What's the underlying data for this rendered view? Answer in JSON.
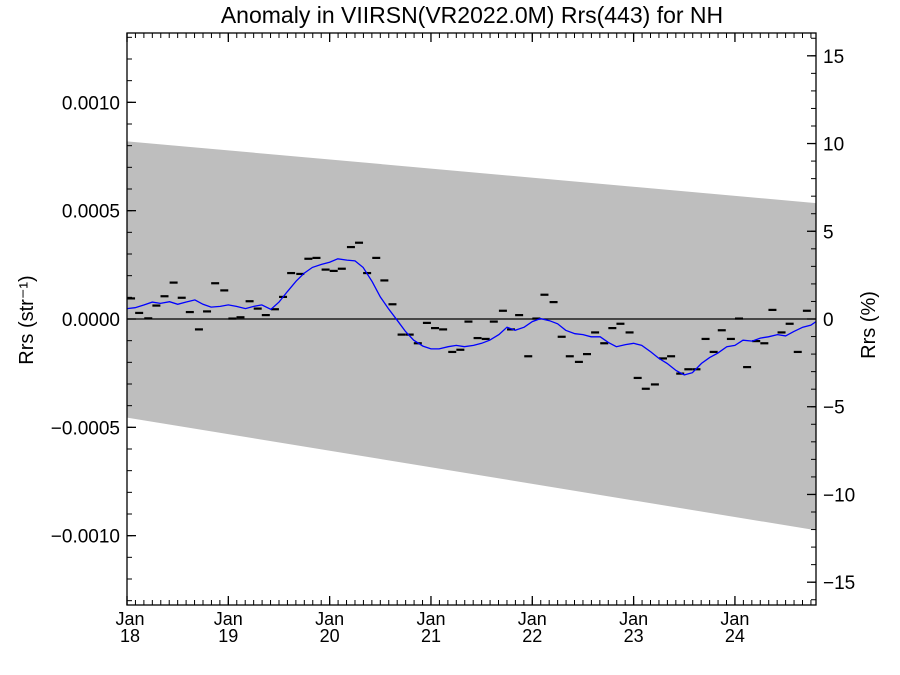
{
  "chart_data": {
    "type": "scatter",
    "title": "Anomaly in VIIRSN(VR2022.0M) Rrs(443) for NH",
    "ylabel": "Rrs (str⁻¹)",
    "y2label": "Rrs (%)",
    "xlim": [
      2018.0,
      2024.8
    ],
    "ylim": [
      -0.00132,
      0.00132
    ],
    "y2lim": [
      -16.3,
      16.3
    ],
    "grid": false,
    "x_ticks": [
      {
        "x": 2018.0,
        "month": "Jan",
        "year": "18"
      },
      {
        "x": 2019.0,
        "month": "Jan",
        "year": "19"
      },
      {
        "x": 2020.0,
        "month": "Jan",
        "year": "20"
      },
      {
        "x": 2021.0,
        "month": "Jan",
        "year": "21"
      },
      {
        "x": 2022.0,
        "month": "Jan",
        "year": "22"
      },
      {
        "x": 2023.0,
        "month": "Jan",
        "year": "23"
      },
      {
        "x": 2024.0,
        "month": "Jan",
        "year": "24"
      }
    ],
    "y_ticks": [
      {
        "v": 0.001,
        "label": "0.0010"
      },
      {
        "v": 0.0005,
        "label": "0.0005"
      },
      {
        "v": 0.0,
        "label": "0.0000"
      },
      {
        "v": -0.0005,
        "label": "−0.0005"
      },
      {
        "v": -0.001,
        "label": "−0.0010"
      }
    ],
    "y2_ticks": [
      {
        "v": 15,
        "label": "15"
      },
      {
        "v": 10,
        "label": "10"
      },
      {
        "v": 5,
        "label": "5"
      },
      {
        "v": 0,
        "label": "0"
      },
      {
        "v": -5,
        "label": "−5"
      },
      {
        "v": -10,
        "label": "−10"
      },
      {
        "v": -15,
        "label": "−15"
      }
    ],
    "band": {
      "color": "#bebebe",
      "upper": [
        [
          2018.0,
          0.00082
        ],
        [
          2024.8,
          0.000535
        ]
      ],
      "lower": [
        [
          2018.0,
          -0.000455
        ],
        [
          2024.8,
          -0.000975
        ]
      ]
    },
    "monthly_points": {
      "color": "#000000",
      "x": [
        2018.04,
        2018.12,
        2018.21,
        2018.29,
        2018.37,
        2018.46,
        2018.54,
        2018.62,
        2018.71,
        2018.79,
        2018.87,
        2018.96,
        2019.04,
        2019.12,
        2019.21,
        2019.29,
        2019.37,
        2019.46,
        2019.54,
        2019.62,
        2019.71,
        2019.79,
        2019.87,
        2019.96,
        2020.04,
        2020.12,
        2020.21,
        2020.29,
        2020.37,
        2020.46,
        2020.54,
        2020.62,
        2020.71,
        2020.79,
        2020.87,
        2020.96,
        2021.04,
        2021.12,
        2021.21,
        2021.29,
        2021.37,
        2021.46,
        2021.54,
        2021.62,
        2021.71,
        2021.79,
        2021.87,
        2021.96,
        2022.04,
        2022.12,
        2022.21,
        2022.29,
        2022.37,
        2022.46,
        2022.54,
        2022.62,
        2022.71,
        2022.79,
        2022.87,
        2022.96,
        2023.04,
        2023.12,
        2023.21,
        2023.29,
        2023.37,
        2023.46,
        2023.54,
        2023.62,
        2023.71,
        2023.79,
        2023.87,
        2023.96,
        2024.04,
        2024.12,
        2024.21,
        2024.29,
        2024.37,
        2024.46,
        2024.54,
        2024.62,
        2024.71
      ],
      "y": [
        9.5e-05,
        2.8e-05,
        3e-06,
        6.2e-05,
        0.000105,
        0.000168,
        9.8e-05,
        3.2e-05,
        -4.8e-05,
        3.5e-05,
        0.000165,
        0.000132,
        2e-06,
        8e-06,
        8.2e-05,
        4.8e-05,
        1.8e-05,
        4.5e-05,
        0.000102,
        0.000212,
        0.000208,
        0.000278,
        0.000282,
        0.000228,
        0.000222,
        0.000232,
        0.000332,
        0.000352,
        0.000212,
        0.000282,
        0.000178,
        6.8e-05,
        -7.2e-05,
        -7.2e-05,
        -0.000112,
        -1.8e-05,
        -4.2e-05,
        -4.8e-05,
        -0.000152,
        -0.000142,
        -1.2e-05,
        -8.8e-05,
        -9.2e-05,
        -1.2e-05,
        3.8e-05,
        -4.8e-05,
        1.8e-05,
        -0.000172,
        2e-06,
        0.000112,
        7.8e-05,
        -8.2e-05,
        -0.000172,
        -0.000198,
        -0.000162,
        -6.2e-05,
        -0.000112,
        -4.2e-05,
        -2.2e-05,
        -6.2e-05,
        -0.000272,
        -0.000322,
        -0.000302,
        -0.000182,
        -0.000172,
        -0.000252,
        -0.000232,
        -0.000232,
        -9.2e-05,
        -0.000152,
        -5.2e-05,
        -9.2e-05,
        2e-06,
        -0.000222,
        -0.000102,
        -0.000112,
        4.2e-05,
        -6.2e-05,
        -2.2e-05,
        -0.000152,
        3.8e-05
      ]
    },
    "running_mean": {
      "color": "#0000ff",
      "x": [
        2018.0,
        2018.08,
        2018.17,
        2018.25,
        2018.33,
        2018.42,
        2018.5,
        2018.58,
        2018.67,
        2018.75,
        2018.83,
        2018.92,
        2019.0,
        2019.08,
        2019.17,
        2019.25,
        2019.33,
        2019.42,
        2019.5,
        2019.58,
        2019.67,
        2019.75,
        2019.83,
        2019.92,
        2020.0,
        2020.08,
        2020.17,
        2020.25,
        2020.33,
        2020.42,
        2020.5,
        2020.58,
        2020.67,
        2020.75,
        2020.83,
        2020.92,
        2021.0,
        2021.08,
        2021.17,
        2021.25,
        2021.33,
        2021.42,
        2021.5,
        2021.58,
        2021.67,
        2021.75,
        2021.83,
        2021.92,
        2022.0,
        2022.08,
        2022.17,
        2022.25,
        2022.33,
        2022.42,
        2022.5,
        2022.58,
        2022.67,
        2022.75,
        2022.83,
        2022.92,
        2023.0,
        2023.08,
        2023.17,
        2023.25,
        2023.33,
        2023.42,
        2023.5,
        2023.58,
        2023.67,
        2023.75,
        2023.83,
        2023.92,
        2024.0,
        2024.08,
        2024.17,
        2024.25,
        2024.33,
        2024.42,
        2024.5,
        2024.58,
        2024.67,
        2024.75,
        2024.8
      ],
      "y": [
        4.8e-05,
        5.2e-05,
        6.5e-05,
        7.8e-05,
        7.2e-05,
        8e-05,
        6.8e-05,
        7.8e-05,
        8.8e-05,
        6.8e-05,
        5.5e-05,
        5.8e-05,
        6.5e-05,
        5.8e-05,
        4.8e-05,
        5.8e-05,
        6.5e-05,
        4.5e-05,
        7.8e-05,
        0.000125,
        0.000175,
        0.000212,
        0.000238,
        0.000252,
        0.000262,
        0.000278,
        0.000272,
        0.000268,
        0.000238,
        0.000172,
        0.000102,
        4.8e-05,
        -8e-06,
        -5.8e-05,
        -9.8e-05,
        -0.000125,
        -0.000138,
        -0.000138,
        -0.000128,
        -0.000122,
        -0.000128,
        -0.000122,
        -0.000112,
        -9.8e-05,
        -7.2e-05,
        -3.8e-05,
        -5.2e-05,
        -3.8e-05,
        -1.2e-05,
        2e-06,
        -8e-06,
        -2.2e-05,
        -5.2e-05,
        -6.8e-05,
        -7.2e-05,
        -8.2e-05,
        -8.2e-05,
        -0.000108,
        -0.000128,
        -0.000118,
        -0.000112,
        -0.000122,
        -0.000152,
        -0.000182,
        -0.000205,
        -0.000238,
        -0.000258,
        -0.000248,
        -0.000205,
        -0.000178,
        -0.000158,
        -0.000128,
        -0.000122,
        -9.8e-05,
        -0.000102,
        -8.8e-05,
        -8.2e-05,
        -7.2e-05,
        -7.8e-05,
        -5.8e-05,
        -3.8e-05,
        -2.8e-05,
        -1.2e-05
      ]
    },
    "zero_line": 0.0
  }
}
